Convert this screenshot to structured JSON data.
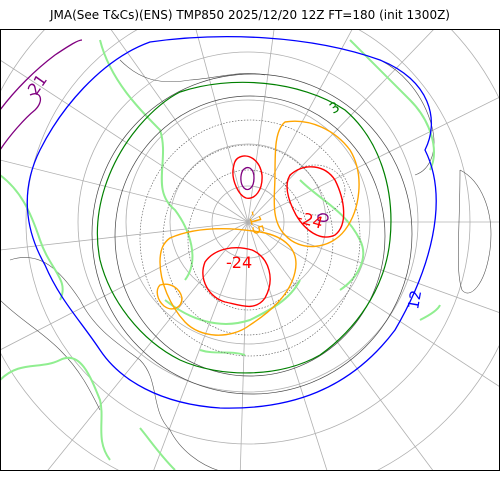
{
  "title": "JMA(See T&Cs)(ENS) TMP850 2025/12/20 12Z FT=180 (init 1300Z)",
  "contour_labels": [
    {
      "text": "21",
      "color": "#800080"
    },
    {
      "text": "3",
      "color": "#008000"
    },
    {
      "text": "-15",
      "color": "#ffa500"
    },
    {
      "text": "-24",
      "color": "#ff0000"
    },
    {
      "text": "-24",
      "color": "#ff0000"
    },
    {
      "text": "12",
      "color": "#0000ff"
    }
  ],
  "colors": {
    "coastline": "#90ee90",
    "isotherm_purple": "#800080",
    "isotherm_red": "#ff0000",
    "isotherm_orange": "#ffa500",
    "isotherm_green": "#008000",
    "isotherm_lightgreen": "#90ee90",
    "isotherm_blue": "#0000ff",
    "isotherm_black": "#000000",
    "graticule": "#a9a9a9"
  }
}
